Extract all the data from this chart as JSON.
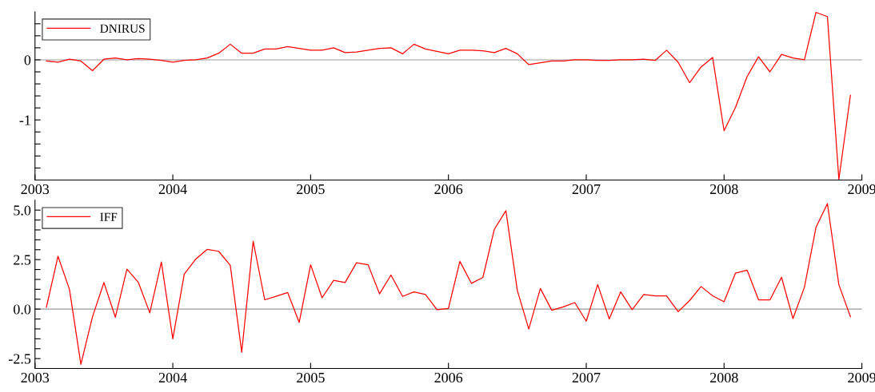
{
  "chart_data": [
    {
      "type": "line",
      "x": [
        2003.083,
        2003.167,
        2003.25,
        2003.333,
        2003.417,
        2003.5,
        2003.583,
        2003.667,
        2003.75,
        2003.833,
        2003.917,
        2004,
        2004.083,
        2004.167,
        2004.25,
        2004.333,
        2004.417,
        2004.5,
        2004.583,
        2004.667,
        2004.75,
        2004.833,
        2004.917,
        2005,
        2005.083,
        2005.167,
        2005.25,
        2005.333,
        2005.417,
        2005.5,
        2005.583,
        2005.667,
        2005.75,
        2005.833,
        2005.917,
        2006,
        2006.083,
        2006.167,
        2006.25,
        2006.333,
        2006.417,
        2006.5,
        2006.583,
        2006.667,
        2006.75,
        2006.833,
        2006.917,
        2007,
        2007.083,
        2007.167,
        2007.25,
        2007.333,
        2007.417,
        2007.5,
        2007.583,
        2007.667,
        2007.75,
        2007.833,
        2007.917,
        2008,
        2008.083,
        2008.167,
        2008.25,
        2008.333,
        2008.417,
        2008.5,
        2008.583,
        2008.667,
        2008.75,
        2008.833,
        2008.917
      ],
      "series": [
        {
          "name": "DNIRUS",
          "color": "#ff0000",
          "values": [
            -0.02,
            -0.04,
            0.01,
            -0.02,
            -0.18,
            0.01,
            0.03,
            0.0,
            0.02,
            0.01,
            -0.01,
            -0.04,
            -0.01,
            0.0,
            0.03,
            0.11,
            0.26,
            0.11,
            0.11,
            0.18,
            0.18,
            0.22,
            0.19,
            0.16,
            0.16,
            0.2,
            0.12,
            0.13,
            0.16,
            0.19,
            0.2,
            0.1,
            0.26,
            0.18,
            0.14,
            0.1,
            0.16,
            0.16,
            0.15,
            0.12,
            0.19,
            0.1,
            -0.08,
            -0.05,
            -0.02,
            -0.02,
            0.0,
            0.0,
            -0.01,
            -0.01,
            0.0,
            0.0,
            0.01,
            -0.01,
            0.16,
            -0.04,
            -0.38,
            -0.12,
            0.04,
            -1.18,
            -0.79,
            -0.28,
            0.05,
            -0.2,
            0.09,
            0.03,
            0.0,
            0.79,
            0.72,
            -1.99,
            -0.59
          ]
        }
      ],
      "xlim": [
        2003,
        2009
      ],
      "xticks": [
        2003,
        2004,
        2005,
        2006,
        2007,
        2008,
        2009
      ],
      "ylim": [
        -2.0,
        0.8
      ],
      "yticks": [
        {
          "value": -1.8,
          "label": null
        },
        {
          "value": -1.6,
          "label": null
        },
        {
          "value": -1.4,
          "label": null
        },
        {
          "value": -1.2,
          "label": null
        },
        {
          "value": -1,
          "label": "-1"
        },
        {
          "value": -0.8,
          "label": null
        },
        {
          "value": -0.6,
          "label": null
        },
        {
          "value": -0.4,
          "label": null
        },
        {
          "value": -0.2,
          "label": null
        },
        0,
        {
          "value": 0.2,
          "label": null
        },
        {
          "value": 0.4,
          "label": null
        },
        {
          "value": 0.6,
          "label": null
        }
      ],
      "ref_lines": [
        {
          "axis": "y",
          "value": 0,
          "color": "#999999"
        }
      ],
      "legend": "top left",
      "grid": false,
      "line_style": "solid",
      "marker": "none"
    },
    {
      "type": "line",
      "x": [
        2003.083,
        2003.167,
        2003.25,
        2003.333,
        2003.417,
        2003.5,
        2003.583,
        2003.667,
        2003.75,
        2003.833,
        2003.917,
        2004,
        2004.083,
        2004.167,
        2004.25,
        2004.333,
        2004.417,
        2004.5,
        2004.583,
        2004.667,
        2004.75,
        2004.833,
        2004.917,
        2005,
        2005.083,
        2005.167,
        2005.25,
        2005.333,
        2005.417,
        2005.5,
        2005.583,
        2005.667,
        2005.75,
        2005.833,
        2005.917,
        2006,
        2006.083,
        2006.167,
        2006.25,
        2006.333,
        2006.417,
        2006.5,
        2006.583,
        2006.667,
        2006.75,
        2006.833,
        2006.917,
        2007,
        2007.083,
        2007.167,
        2007.25,
        2007.333,
        2007.417,
        2007.5,
        2007.583,
        2007.667,
        2007.75,
        2007.833,
        2007.917,
        2008,
        2008.083,
        2008.167,
        2008.25,
        2008.333,
        2008.417,
        2008.5,
        2008.583,
        2008.667,
        2008.75,
        2008.833,
        2008.917
      ],
      "series": [
        {
          "name": "IFF",
          "color": "#ff0000",
          "values": [
            0.1,
            2.67,
            1.0,
            -2.79,
            -0.39,
            1.34,
            -0.41,
            2.02,
            1.35,
            -0.19,
            2.38,
            -1.5,
            1.77,
            2.53,
            3.02,
            2.92,
            2.21,
            -2.18,
            3.43,
            0.47,
            0.65,
            0.84,
            -0.67,
            2.24,
            0.57,
            1.45,
            1.34,
            2.34,
            2.24,
            0.77,
            1.72,
            0.64,
            0.87,
            0.74,
            -0.03,
            0.03,
            2.41,
            1.3,
            1.6,
            4.03,
            4.97,
            0.94,
            -1.01,
            1.04,
            -0.06,
            0.11,
            0.33,
            -0.61,
            1.24,
            -0.5,
            0.87,
            -0.03,
            0.74,
            0.67,
            0.67,
            -0.13,
            0.43,
            1.14,
            0.67,
            0.37,
            1.82,
            1.97,
            0.47,
            0.46,
            1.61,
            -0.48,
            1.1,
            4.13,
            5.33,
            1.23,
            -0.38
          ]
        }
      ],
      "xlim": [
        2003,
        2009
      ],
      "xticks": [
        2003,
        2004,
        2005,
        2006,
        2007,
        2008,
        2009
      ],
      "ylim": [
        -3.0,
        5.5
      ],
      "yticks": [
        {
          "value": -2.5,
          "label": "-2.5"
        },
        {
          "value": -2.0,
          "label": null
        },
        {
          "value": -1.5,
          "label": null
        },
        {
          "value": -1.0,
          "label": null
        },
        {
          "value": -0.5,
          "label": null
        },
        {
          "value": 0,
          "label": "0.0"
        },
        {
          "value": 0.5,
          "label": null
        },
        {
          "value": 1.0,
          "label": null
        },
        {
          "value": 1.5,
          "label": null
        },
        {
          "value": 2.0,
          "label": null
        },
        {
          "value": 2.5,
          "label": "2.5"
        },
        {
          "value": 3.0,
          "label": null
        },
        {
          "value": 3.5,
          "label": null
        },
        {
          "value": 4.0,
          "label": null
        },
        {
          "value": 4.5,
          "label": null
        },
        {
          "value": 5.0,
          "label": "5.0"
        }
      ],
      "ref_lines": [
        {
          "axis": "y",
          "value": 0,
          "color": "#999999"
        }
      ],
      "legend": "top left",
      "grid": false,
      "line_style": "solid",
      "marker": "none"
    }
  ]
}
